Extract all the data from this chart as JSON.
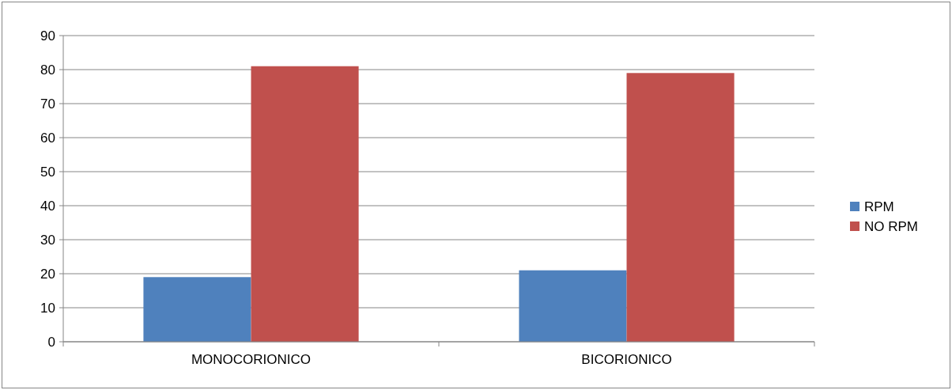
{
  "chart_data": {
    "type": "bar",
    "categories": [
      "MONOCORIONICO",
      "BICORIONICO"
    ],
    "series": [
      {
        "name": "RPM",
        "color": "#4f81bd",
        "values": [
          19,
          21
        ]
      },
      {
        "name": "NO RPM",
        "color": "#c0504d",
        "values": [
          81,
          79
        ]
      }
    ],
    "ylim": [
      0,
      90
    ],
    "yticks": [
      0,
      10,
      20,
      30,
      40,
      50,
      60,
      70,
      80,
      90
    ],
    "grid": "y",
    "legend": "right"
  }
}
